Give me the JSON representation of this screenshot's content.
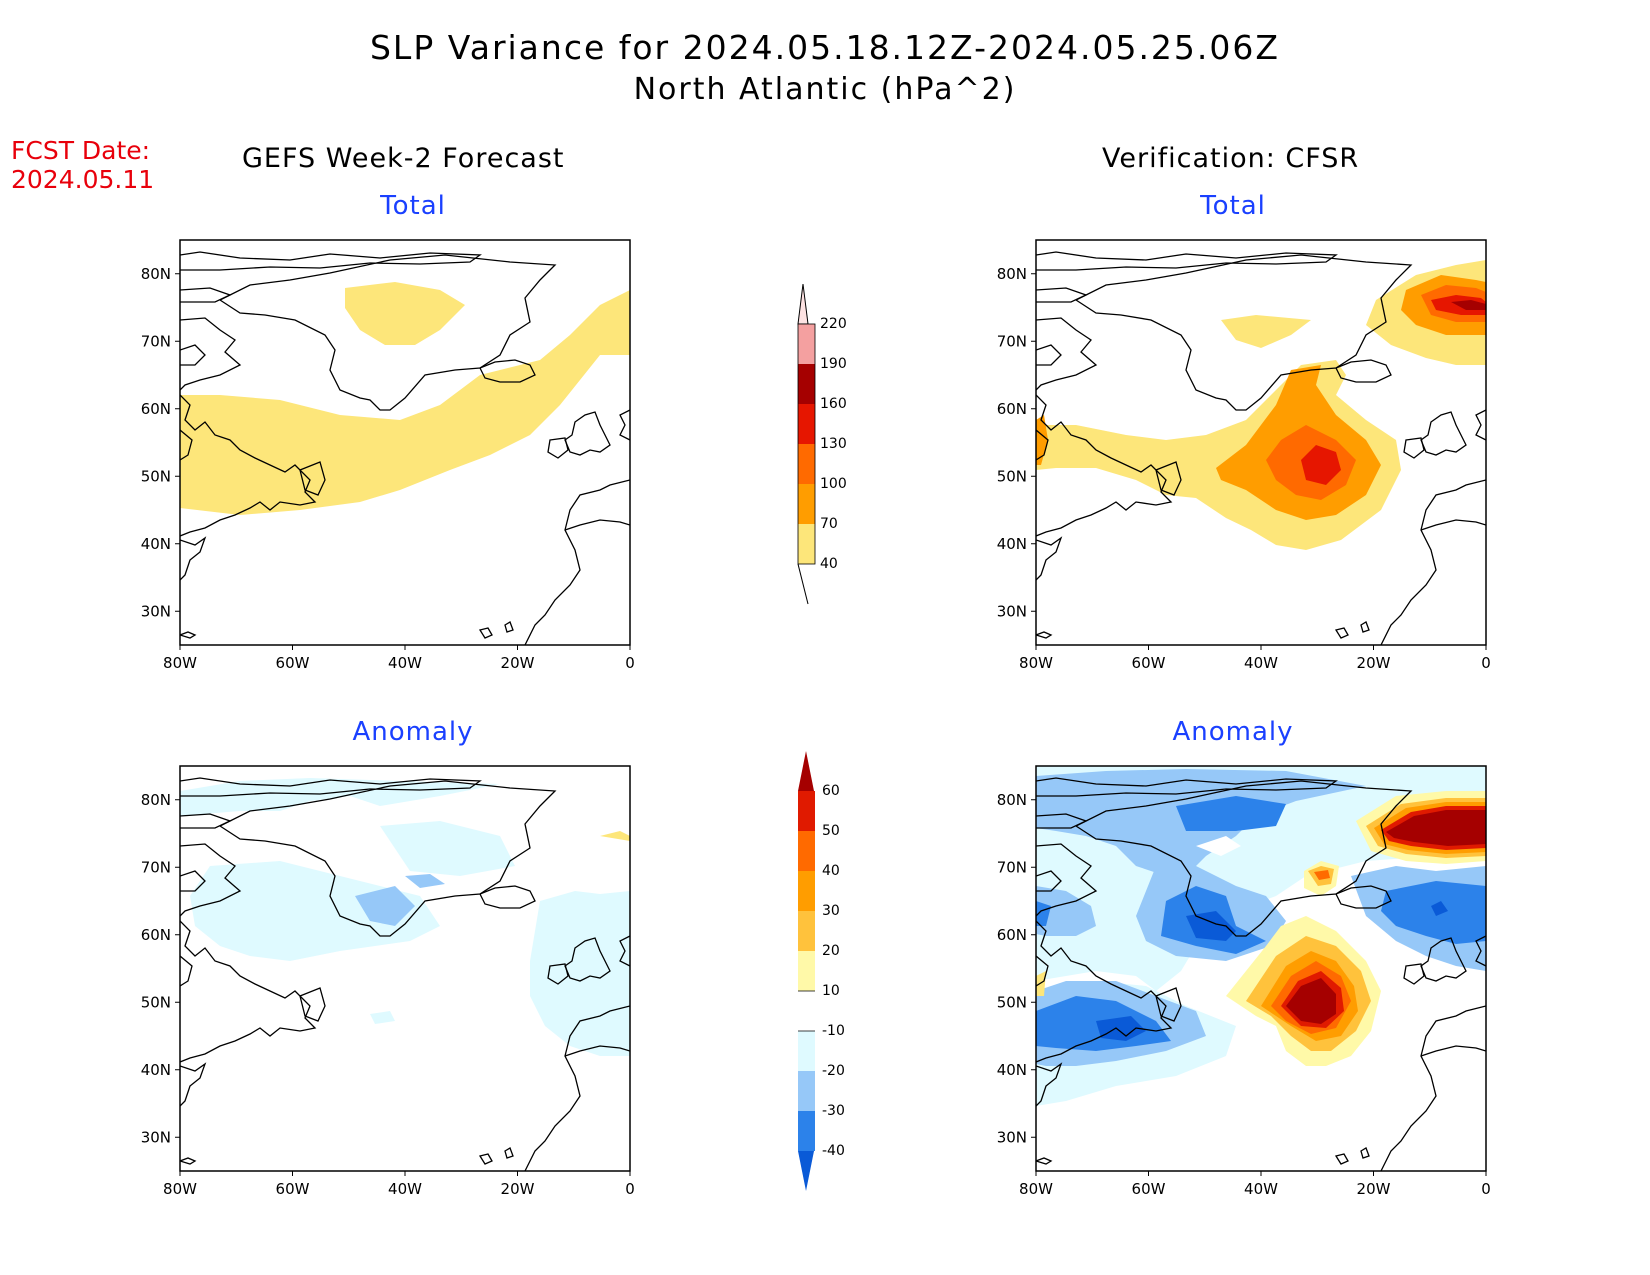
{
  "title": {
    "line1": "SLP Variance for 2024.05.18.12Z-2024.05.25.06Z",
    "line2": "North Atlantic (hPa^2)"
  },
  "fcst_date": {
    "label": "FCST Date:",
    "value": "2024.05.11"
  },
  "columns": {
    "left": "GEFS Week-2 Forecast",
    "right": "Verification: CFSR"
  },
  "panel_titles": {
    "total": "Total",
    "anomaly": "Anomaly"
  },
  "axes": {
    "lat_ticks": [
      "80N",
      "70N",
      "60N",
      "50N",
      "40N",
      "30N"
    ],
    "lon_ticks": [
      "80W",
      "60W",
      "40W",
      "20W",
      "0"
    ],
    "lat_range": [
      25,
      85
    ],
    "lon_range": [
      -80,
      0
    ]
  },
  "colorbars": {
    "total": {
      "labels": [
        "40",
        "70",
        "100",
        "130",
        "160",
        "190",
        "220"
      ],
      "colors": [
        "#fde67a",
        "#ff9d00",
        "#ff6a00",
        "#e61600",
        "#a50000",
        "#f4a0a0",
        "#fde2e2"
      ]
    },
    "anomaly": {
      "labels": [
        "-40",
        "-30",
        "-20",
        "-10",
        "10",
        "20",
        "30",
        "40",
        "50",
        "60"
      ],
      "colors": [
        "#0a5ad7",
        "#2c82ea",
        "#96c8f8",
        "#dffaff",
        "#ffffff",
        "#fff9a8",
        "#ffc23c",
        "#ff9d00",
        "#ff6a00",
        "#e01a00",
        "#a50000"
      ]
    }
  },
  "map_data": {
    "gefs_total": [
      {
        "level": "40-70",
        "color": "#fde67a",
        "region": "broad band Labrador Sea to Norwegian Sea, patch over central Greenland"
      }
    ],
    "cfsr_total": [
      {
        "level": "40-70",
        "color": "#fde67a"
      },
      {
        "level": "70-100",
        "color": "#ff9d00"
      },
      {
        "level": "100-130",
        "color": "#ff6a00"
      },
      {
        "level": "130-160",
        "color": "#e61600"
      },
      {
        "level": "160-190",
        "color": "#a50000"
      }
    ],
    "gefs_anomaly": [
      {
        "level": "-20 to -10",
        "color": "#dffaff"
      },
      {
        "level": "-30 to -20",
        "color": "#96c8f8"
      }
    ],
    "cfsr_anomaly": [
      {
        "level": "-10 to -20",
        "color": "#dffaff"
      },
      {
        "level": "-20 to -30",
        "color": "#96c8f8"
      },
      {
        "level": "-30 to -40",
        "color": "#2c82ea"
      },
      {
        "level": "below -40",
        "color": "#0a5ad7"
      },
      {
        "level": "10-20",
        "color": "#fff9a8"
      },
      {
        "level": "20-30",
        "color": "#ffc23c"
      },
      {
        "level": "30-40",
        "color": "#ff9d00"
      },
      {
        "level": "40-50",
        "color": "#ff6a00"
      },
      {
        "level": "50-60",
        "color": "#e01a00"
      },
      {
        "level": "above 60",
        "color": "#a50000"
      }
    ]
  }
}
